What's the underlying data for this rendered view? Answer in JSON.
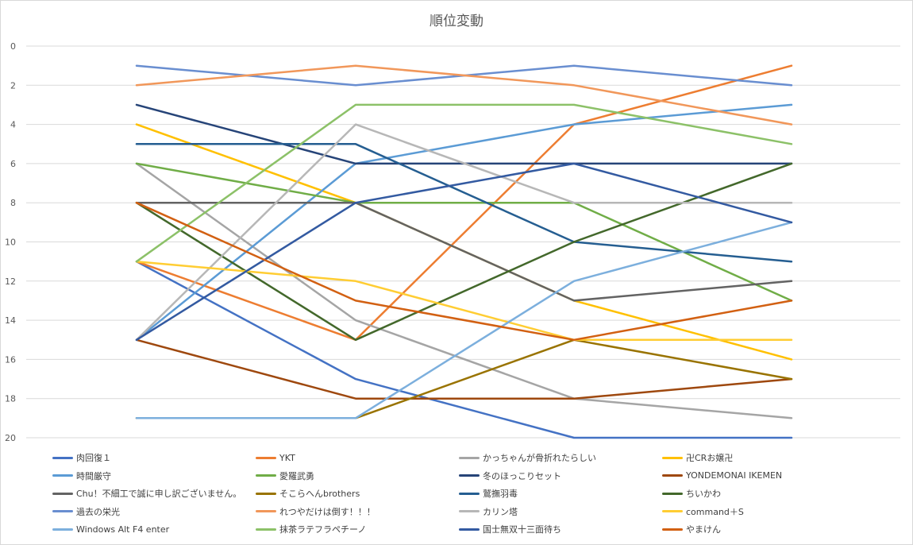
{
  "chart_data": {
    "type": "line",
    "title": "順位変動",
    "xlabel": "",
    "ylabel": "",
    "ylim": [
      0,
      20
    ],
    "y_inverted": true,
    "y_ticks": [
      "0",
      "2",
      "4",
      "6",
      "8",
      "10",
      "12",
      "14",
      "16",
      "18",
      "20"
    ],
    "x_points": 4,
    "grid": "horizontal",
    "legend_position": "bottom",
    "series": [
      {
        "name": "肉回復１",
        "color": "#4472C4",
        "values": [
          11,
          17,
          20,
          20
        ]
      },
      {
        "name": "YKT",
        "color": "#ED7D31",
        "values": [
          11,
          15,
          4,
          1
        ]
      },
      {
        "name": "かっちゃんが骨折れたらしい",
        "color": "#A5A5A5",
        "values": [
          6,
          14,
          18,
          19
        ]
      },
      {
        "name": "卍CRお嬢卍",
        "color": "#FFC000",
        "values": [
          4,
          8,
          13,
          16
        ]
      },
      {
        "name": "時間厳守",
        "color": "#5B9BD5",
        "values": [
          15,
          6,
          4,
          3
        ]
      },
      {
        "name": "愛羅武勇",
        "color": "#70AD47",
        "values": [
          6,
          8,
          8,
          13
        ]
      },
      {
        "name": "冬のほっこりセット",
        "color": "#264478",
        "values": [
          3,
          6,
          6,
          6
        ]
      },
      {
        "name": "YONDEMONAI IKEMEN",
        "color": "#9E480E",
        "values": [
          15,
          18,
          18,
          17
        ]
      },
      {
        "name": "Chu！不細工で誠に申し訳ございません。",
        "color": "#636363",
        "values": [
          8,
          8,
          13,
          12
        ]
      },
      {
        "name": "そこらへんbrothers",
        "color": "#997300",
        "values": [
          19,
          19,
          15,
          17
        ]
      },
      {
        "name": "鷲撫羽毒",
        "color": "#255E91",
        "values": [
          5,
          5,
          10,
          11
        ]
      },
      {
        "name": "ちいかわ",
        "color": "#43682B",
        "values": [
          8,
          15,
          10,
          6
        ]
      },
      {
        "name": "過去の栄光",
        "color": "#698ED0",
        "values": [
          1,
          2,
          1,
          2
        ]
      },
      {
        "name": "れつやだけは倒す！！！",
        "color": "#F1975A",
        "values": [
          2,
          1,
          2,
          4
        ]
      },
      {
        "name": "カリン塔",
        "color": "#B7B7B7",
        "values": [
          15,
          4,
          8,
          8
        ]
      },
      {
        "name": "command＋S",
        "color": "#FFCD33",
        "values": [
          11,
          12,
          15,
          15
        ]
      },
      {
        "name": "Windows Alt F4 enter",
        "color": "#7CAFDD",
        "values": [
          19,
          19,
          12,
          9
        ]
      },
      {
        "name": "抹茶ラテフラペチーノ",
        "color": "#8CC168",
        "values": [
          11,
          3,
          3,
          5
        ]
      },
      {
        "name": "国士無双十三面待ち",
        "color": "#335AA1",
        "values": [
          15,
          8,
          6,
          9
        ]
      },
      {
        "name": "やまけん",
        "color": "#D26012",
        "values": [
          8,
          13,
          15,
          13
        ]
      }
    ]
  }
}
